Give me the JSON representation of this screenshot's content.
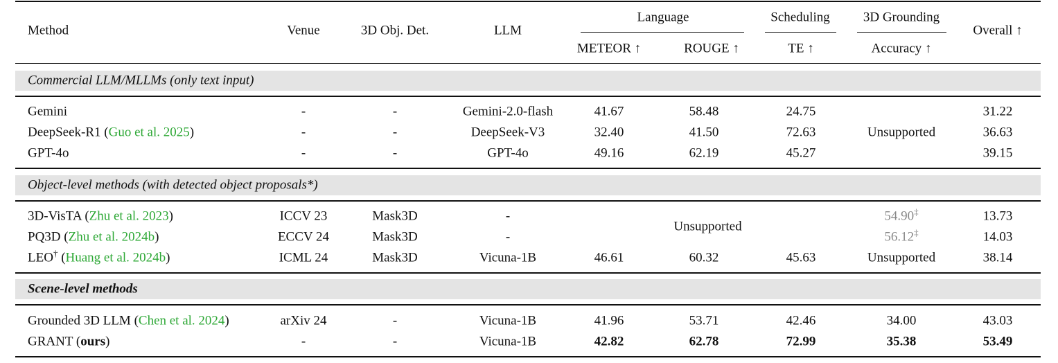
{
  "header": {
    "method": "Method",
    "venue": "Venue",
    "det": "3D Obj. Det.",
    "llm": "LLM",
    "language": "Language",
    "scheduling": "Scheduling",
    "grounding": "3D Grounding",
    "overall": "Overall ↑",
    "meteor": "METEOR ↑",
    "rouge": "ROUGE ↑",
    "te": "TE ↑",
    "accuracy": "Accuracy ↑"
  },
  "sections": [
    {
      "title": "Commercial LLM/MLLMs (only text input)",
      "title_bold": false,
      "rows": [
        {
          "method": "Gemini",
          "cite": "",
          "venue": "-",
          "det": "-",
          "llm": "Gemini-2.0-flash",
          "meteor": "41.67",
          "rouge": "58.48",
          "te": "24.75",
          "acc": null,
          "overall": "31.22"
        },
        {
          "method": "DeepSeek-R1",
          "cite": "Guo et al. 2025",
          "venue": "-",
          "det": "-",
          "llm": "DeepSeek-V3",
          "meteor": "32.40",
          "rouge": "41.50",
          "te": "72.63",
          "acc": null,
          "overall": "36.63"
        },
        {
          "method": "GPT-4o",
          "cite": "",
          "venue": "-",
          "det": "-",
          "llm": "GPT-4o",
          "meteor": "49.16",
          "rouge": "62.19",
          "te": "45.27",
          "acc": null,
          "overall": "39.15"
        }
      ],
      "merged": [
        {
          "text": "Unsupported",
          "cols": [
            "acc"
          ],
          "rows": [
            0,
            2
          ]
        }
      ]
    },
    {
      "title": "Object-level methods (with detected object proposals*)",
      "title_bold": false,
      "rows": [
        {
          "method": "3D-VisTA",
          "cite": "Zhu et al. 2023",
          "venue": "ICCV 23",
          "det": "Mask3D",
          "llm": "-",
          "meteor": null,
          "rouge": null,
          "te": null,
          "acc": "54.90",
          "acc_mark": "‡",
          "acc_grey": true,
          "overall": "13.73"
        },
        {
          "method": "PQ3D",
          "cite": "Zhu et al. 2024b",
          "venue": "ECCV 24",
          "det": "Mask3D",
          "llm": "-",
          "meteor": null,
          "rouge": null,
          "te": null,
          "acc": "56.12",
          "acc_mark": "‡",
          "acc_grey": true,
          "overall": "14.03"
        },
        {
          "method": "LEO",
          "method_mark": "†",
          "cite": "Huang et al. 2024b",
          "venue": "ICML 24",
          "det": "Mask3D",
          "llm": "Vicuna-1B",
          "meteor": "46.61",
          "rouge": "60.32",
          "te": "45.63",
          "acc": "Unsupported",
          "overall": "38.14"
        }
      ],
      "merged": [
        {
          "text": "Unsupported",
          "cols": [
            "meteor",
            "te"
          ],
          "rows": [
            0,
            1
          ]
        }
      ]
    },
    {
      "title": "Scene-level methods",
      "title_bold": true,
      "rows": [
        {
          "method": "Grounded 3D LLM",
          "cite": "Chen et al. 2024",
          "venue": "arXiv 24",
          "det": "-",
          "llm": "Vicuna-1B",
          "meteor": "41.96",
          "rouge": "53.71",
          "te": "42.46",
          "acc": "34.00",
          "overall": "43.03"
        },
        {
          "method": "GRANT",
          "method_suffix": "ours",
          "bold": true,
          "cite": "",
          "venue": "-",
          "det": "-",
          "llm": "Vicuna-1B",
          "meteor": "42.82",
          "rouge": "62.78",
          "te": "72.99",
          "acc": "35.38",
          "overall": "53.49"
        }
      ],
      "merged": []
    }
  ],
  "colors": {
    "citation": "#2ea836",
    "band": "#e4e4e4",
    "grey_value": "#888888"
  }
}
